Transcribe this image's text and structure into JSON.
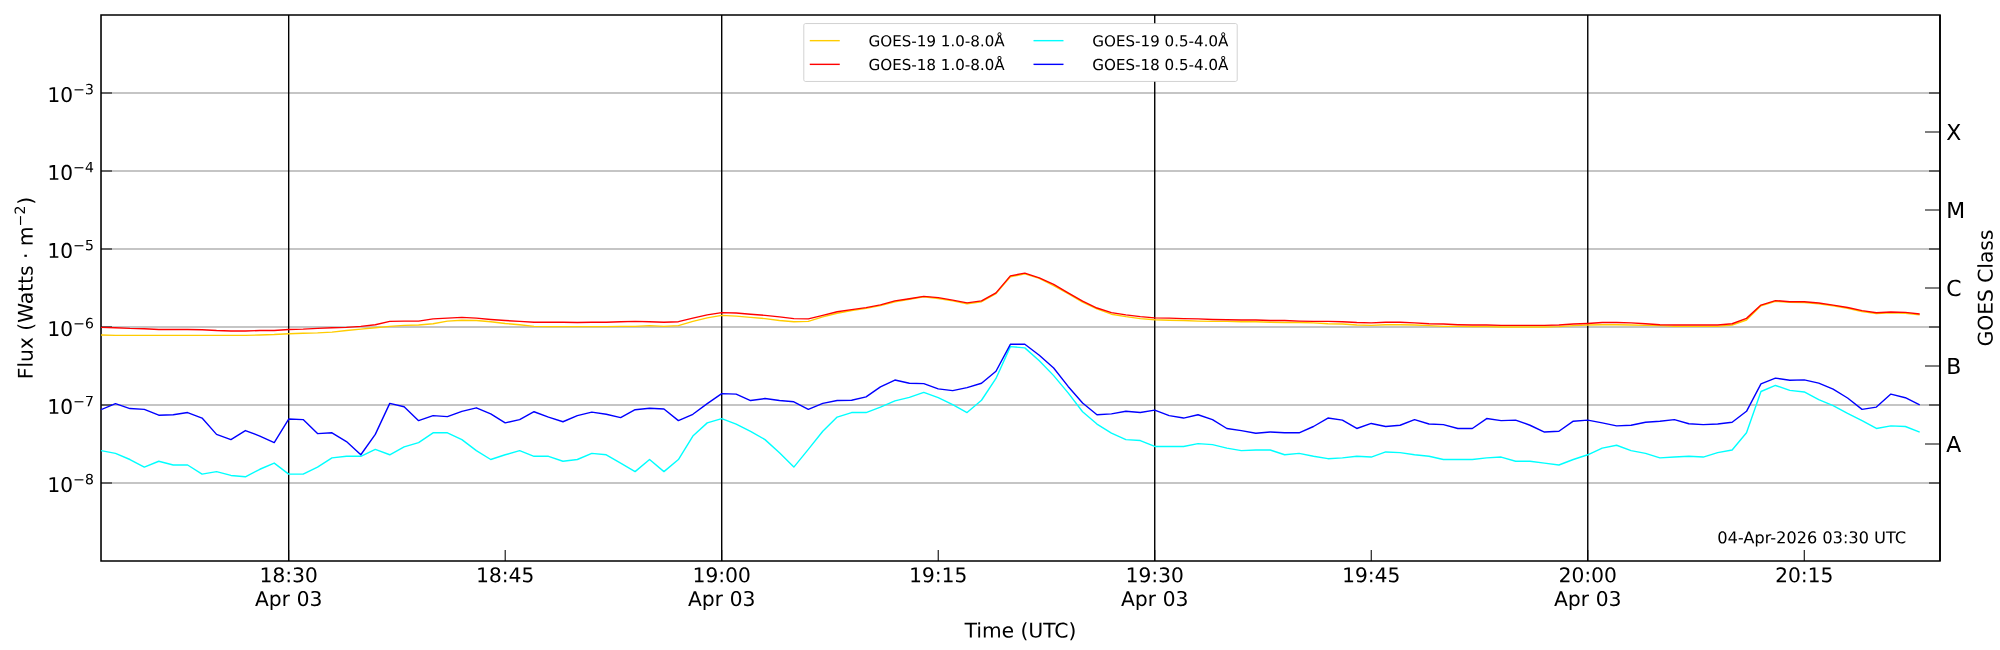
{
  "chart_data": {
    "type": "line",
    "xlabel": "Time (UTC)",
    "ylabel": "Flux (Watts · m$^{−2}$)",
    "y2label": "GOES Class",
    "annotations": [
      "04-Apr-2026 03:30 UTC"
    ],
    "log": "y",
    "grid": "y",
    "legend": "top",
    "xlim": [
      18.2833,
      20.4067
    ],
    "ylim": [
      1e-09,
      0.01
    ],
    "y2_categories": [
      "X",
      "M",
      "C",
      "B",
      "A"
    ],
    "xticks": [
      {
        "value": 18.5,
        "label": "18:30 Apr 03"
      },
      {
        "value": 18.75,
        "label": "18:45"
      },
      {
        "value": 19,
        "label": "19:00 Apr 03"
      },
      {
        "value": 19.25,
        "label": "19:15"
      },
      {
        "value": 19.5,
        "label": "19:30 Apr 03"
      },
      {
        "value": 19.75,
        "label": "19:45"
      },
      {
        "value": 20,
        "label": "20:00 Apr 03"
      },
      {
        "value": 20.25,
        "label": "20:15"
      }
    ],
    "yticks": [
      {
        "value": 1e-08,
        "label": "10$^{−8}$"
      },
      {
        "value": 1e-07,
        "label": "10$^{−7}$"
      },
      {
        "value": 1e-06,
        "label": "10$^{−6}$"
      },
      {
        "value": 1e-05,
        "label": "10$^{−5}$"
      },
      {
        "value": 0.0001,
        "label": "10$^{−4}$"
      },
      {
        "value": 0.001,
        "label": "10$^{−3}$"
      }
    ],
    "ref_lines": [
      {
        "axis": "x",
        "value": 18.5,
        "color": "#000000"
      },
      {
        "axis": "x",
        "value": 19,
        "color": "#000000"
      },
      {
        "axis": "x",
        "value": 19.5,
        "color": "#000000"
      },
      {
        "axis": "x",
        "value": 20,
        "color": "#000000"
      }
    ],
    "x": [
      18.2833,
      18.3,
      18.3167,
      18.3333,
      18.35,
      18.3667,
      18.3833,
      18.4,
      18.4167,
      18.4333,
      18.45,
      18.4667,
      18.4833,
      18.5,
      18.5167,
      18.5333,
      18.55,
      18.5667,
      18.5833,
      18.6,
      18.6167,
      18.6333,
      18.65,
      18.6667,
      18.6833,
      18.7,
      18.7167,
      18.7333,
      18.75,
      18.7667,
      18.7833,
      18.8,
      18.8167,
      18.8333,
      18.85,
      18.8667,
      18.8833,
      18.9,
      18.9167,
      18.9333,
      18.95,
      18.9667,
      18.9833,
      19,
      19.0167,
      19.0333,
      19.05,
      19.0667,
      19.0833,
      19.1,
      19.1167,
      19.1333,
      19.15,
      19.1667,
      19.1833,
      19.2,
      19.2167,
      19.2333,
      19.25,
      19.2667,
      19.2833,
      19.3,
      19.3167,
      19.3333,
      19.35,
      19.3667,
      19.3833,
      19.4,
      19.4167,
      19.4333,
      19.45,
      19.4667,
      19.4833,
      19.5,
      19.5167,
      19.5333,
      19.55,
      19.5667,
      19.5833,
      19.6,
      19.6167,
      19.6333,
      19.65,
      19.6667,
      19.6833,
      19.7,
      19.7167,
      19.7333,
      19.75,
      19.7667,
      19.7833,
      19.8,
      19.8167,
      19.8333,
      19.85,
      19.8667,
      19.8833,
      19.9,
      19.9167,
      19.9333,
      19.95,
      19.9667,
      19.9833,
      20,
      20.0167,
      20.0333,
      20.05,
      20.0667,
      20.0833,
      20.1,
      20.1167,
      20.1333,
      20.15,
      20.1667,
      20.1833,
      20.2,
      20.2167,
      20.2333,
      20.25,
      20.2667,
      20.2833,
      20.3,
      20.3167,
      20.3333,
      20.35,
      20.3667,
      20.3833
    ],
    "series": [
      {
        "name": "GOES-19 1.0-8.0Å",
        "color": "#ffcc00",
        "values": [
          7.9e-07,
          7.8e-07,
          7.8e-07,
          7.8e-07,
          7.8e-07,
          7.8e-07,
          7.8e-07,
          7.8e-07,
          7.8e-07,
          7.8e-07,
          7.8e-07,
          7.9e-07,
          8e-07,
          8.2e-07,
          8.3e-07,
          8.4e-07,
          8.6e-07,
          9e-07,
          9.4e-07,
          9.8e-07,
          1.02e-06,
          1.05e-06,
          1.06e-06,
          1.1e-06,
          1.19e-06,
          1.22e-06,
          1.21e-06,
          1.17e-06,
          1.11e-06,
          1.07e-06,
          1.02e-06,
          1.01e-06,
          1.01e-06,
          1.01e-06,
          1.01e-06,
          1.01e-06,
          1.02e-06,
          1.02e-06,
          1.04e-06,
          1.02e-06,
          1.04e-06,
          1.18e-06,
          1.31e-06,
          1.41e-06,
          1.38e-06,
          1.33e-06,
          1.28e-06,
          1.21e-06,
          1.17e-06,
          1.18e-06,
          1.35e-06,
          1.5e-06,
          1.63e-06,
          1.73e-06,
          1.88e-06,
          2.11e-06,
          2.27e-06,
          2.44e-06,
          2.32e-06,
          2.16e-06,
          1.99e-06,
          2.11e-06,
          2.68e-06,
          4.4e-06,
          4.8e-06,
          4.2e-06,
          3.4e-06,
          2.68e-06,
          2.09e-06,
          1.71e-06,
          1.46e-06,
          1.36e-06,
          1.28e-06,
          1.24e-06,
          1.22e-06,
          1.21e-06,
          1.19e-06,
          1.18e-06,
          1.18e-06,
          1.17e-06,
          1.17e-06,
          1.15e-06,
          1.14e-06,
          1.14e-06,
          1.13e-06,
          1.1e-06,
          1.09e-06,
          1.06e-06,
          1.05e-06,
          1.07e-06,
          1.07e-06,
          1.06e-06,
          1.04e-06,
          1.02e-06,
          1.02e-06,
          1.01e-06,
          1.01e-06,
          1e-06,
          1e-06,
          1e-06,
          1e-06,
          1.01e-06,
          1.04e-06,
          1.06e-06,
          1.07e-06,
          1.07e-06,
          1.06e-06,
          1.05e-06,
          1.04e-06,
          1.02e-06,
          1.02e-06,
          1.02e-06,
          1.02e-06,
          1.06e-06,
          1.23e-06,
          1.87e-06,
          2.13e-06,
          2.08e-06,
          2.06e-06,
          1.98e-06,
          1.87e-06,
          1.74e-06,
          1.58e-06,
          1.49e-06,
          1.52e-06,
          1.5e-06,
          1.43e-06
        ]
      },
      {
        "name": "GOES-19 0.5-4.0Å",
        "color": "#00ffff",
        "values": [
          2.6e-08,
          2.4e-08,
          2e-08,
          1.6e-08,
          1.9e-08,
          1.7e-08,
          1.7e-08,
          1.3e-08,
          1.4e-08,
          1.25e-08,
          1.2e-08,
          1.5e-08,
          1.8e-08,
          1.3e-08,
          1.3e-08,
          1.6e-08,
          2.1e-08,
          2.2e-08,
          2.2e-08,
          2.7e-08,
          2.3e-08,
          2.9e-08,
          3.3e-08,
          4.4e-08,
          4.4e-08,
          3.6e-08,
          2.6e-08,
          2e-08,
          2.3e-08,
          2.6e-08,
          2.2e-08,
          2.2e-08,
          1.9e-08,
          2e-08,
          2.4e-08,
          2.3e-08,
          1.8e-08,
          1.4e-08,
          2e-08,
          1.4e-08,
          2e-08,
          4e-08,
          5.9e-08,
          6.7e-08,
          5.7e-08,
          4.6e-08,
          3.6e-08,
          2.44e-08,
          1.6e-08,
          2.7e-08,
          4.6e-08,
          7e-08,
          8e-08,
          8e-08,
          9.4e-08,
          1.13e-07,
          1.25e-07,
          1.45e-07,
          1.24e-07,
          1.01e-07,
          8e-08,
          1.15e-07,
          2.19e-07,
          5.6e-07,
          5.4e-07,
          3.7e-07,
          2.38e-07,
          1.43e-07,
          8.2e-08,
          5.7e-08,
          4.35e-08,
          3.6e-08,
          3.5e-08,
          2.94e-08,
          2.94e-08,
          2.94e-08,
          3.2e-08,
          3.1e-08,
          2.8e-08,
          2.6e-08,
          2.65e-08,
          2.65e-08,
          2.3e-08,
          2.4e-08,
          2.2e-08,
          2.05e-08,
          2.1e-08,
          2.2e-08,
          2.15e-08,
          2.5e-08,
          2.45e-08,
          2.3e-08,
          2.2e-08,
          2e-08,
          2e-08,
          2e-08,
          2.1e-08,
          2.15e-08,
          1.9e-08,
          1.9e-08,
          1.8e-08,
          1.7e-08,
          2e-08,
          2.3e-08,
          2.8e-08,
          3.05e-08,
          2.6e-08,
          2.4e-08,
          2.1e-08,
          2.15e-08,
          2.2e-08,
          2.15e-08,
          2.45e-08,
          2.65e-08,
          4.4e-08,
          1.49e-07,
          1.78e-07,
          1.54e-07,
          1.47e-07,
          1.17e-07,
          9.8e-08,
          7.8e-08,
          6.3e-08,
          5e-08,
          5.4e-08,
          5.3e-08,
          4.5e-08
        ]
      },
      {
        "name": "GOES-18 1.0-8.0Å",
        "color": "#ff0000",
        "values": [
          9.9e-07,
          9.8e-07,
          9.6e-07,
          9.5e-07,
          9.3e-07,
          9.3e-07,
          9.3e-07,
          9.2e-07,
          9e-07,
          8.9e-07,
          8.9e-07,
          9e-07,
          9e-07,
          9.3e-07,
          9.4e-07,
          9.6e-07,
          9.8e-07,
          9.9e-07,
          1.02e-06,
          1.07e-06,
          1.18e-06,
          1.19e-06,
          1.19e-06,
          1.27e-06,
          1.3e-06,
          1.33e-06,
          1.3e-06,
          1.25e-06,
          1.21e-06,
          1.18e-06,
          1.15e-06,
          1.15e-06,
          1.15e-06,
          1.14e-06,
          1.15e-06,
          1.15e-06,
          1.17e-06,
          1.18e-06,
          1.17e-06,
          1.15e-06,
          1.17e-06,
          1.3e-06,
          1.43e-06,
          1.53e-06,
          1.51e-06,
          1.46e-06,
          1.41e-06,
          1.35e-06,
          1.28e-06,
          1.27e-06,
          1.41e-06,
          1.57e-06,
          1.67e-06,
          1.77e-06,
          1.92e-06,
          2.16e-06,
          2.3e-06,
          2.47e-06,
          2.38e-06,
          2.21e-06,
          2.04e-06,
          2.16e-06,
          2.74e-06,
          4.52e-06,
          4.91e-06,
          4.26e-06,
          3.52e-06,
          2.74e-06,
          2.14e-06,
          1.75e-06,
          1.53e-06,
          1.43e-06,
          1.36e-06,
          1.31e-06,
          1.3e-06,
          1.28e-06,
          1.27e-06,
          1.25e-06,
          1.24e-06,
          1.23e-06,
          1.23e-06,
          1.21e-06,
          1.21e-06,
          1.19e-06,
          1.18e-06,
          1.18e-06,
          1.17e-06,
          1.14e-06,
          1.13e-06,
          1.15e-06,
          1.15e-06,
          1.13e-06,
          1.1e-06,
          1.09e-06,
          1.07e-06,
          1.06e-06,
          1.06e-06,
          1.05e-06,
          1.05e-06,
          1.05e-06,
          1.05e-06,
          1.06e-06,
          1.09e-06,
          1.11e-06,
          1.14e-06,
          1.14e-06,
          1.13e-06,
          1.1e-06,
          1.07e-06,
          1.06e-06,
          1.06e-06,
          1.06e-06,
          1.06e-06,
          1.1e-06,
          1.29e-06,
          1.91e-06,
          2.18e-06,
          2.11e-06,
          2.11e-06,
          2.03e-06,
          1.91e-06,
          1.78e-06,
          1.62e-06,
          1.52e-06,
          1.56e-06,
          1.54e-06,
          1.47e-06
        ]
      },
      {
        "name": "GOES-18 0.5-4.0Å",
        "color": "#0000ff",
        "values": [
          8.7e-08,
          1.04e-07,
          9e-08,
          8.8e-08,
          7.4e-08,
          7.5e-08,
          8e-08,
          6.8e-08,
          4.2e-08,
          3.6e-08,
          4.7e-08,
          4e-08,
          3.3e-08,
          6.6e-08,
          6.5e-08,
          4.3e-08,
          4.4e-08,
          3.4e-08,
          2.3e-08,
          4.2e-08,
          1.05e-07,
          9.5e-08,
          6.3e-08,
          7.3e-08,
          7.1e-08,
          8.3e-08,
          9.2e-08,
          7.7e-08,
          5.9e-08,
          6.5e-08,
          8.2e-08,
          7e-08,
          6.1e-08,
          7.3e-08,
          8.1e-08,
          7.6e-08,
          6.9e-08,
          8.7e-08,
          9.1e-08,
          8.9e-08,
          6.3e-08,
          7.6e-08,
          1.04e-07,
          1.4e-07,
          1.38e-07,
          1.14e-07,
          1.21e-07,
          1.14e-07,
          1.1e-07,
          8.8e-08,
          1.05e-07,
          1.14e-07,
          1.15e-07,
          1.27e-07,
          1.71e-07,
          2.09e-07,
          1.9e-07,
          1.88e-07,
          1.61e-07,
          1.53e-07,
          1.67e-07,
          1.9e-07,
          2.71e-07,
          6e-07,
          6e-07,
          4.35e-07,
          2.98e-07,
          1.73e-07,
          1.06e-07,
          7.5e-08,
          7.7e-08,
          8.3e-08,
          8e-08,
          8.6e-08,
          7.3e-08,
          6.8e-08,
          7.5e-08,
          6.5e-08,
          5e-08,
          4.7e-08,
          4.35e-08,
          4.5e-08,
          4.4e-08,
          4.4e-08,
          5.3e-08,
          6.8e-08,
          6.4e-08,
          5e-08,
          5.8e-08,
          5.3e-08,
          5.5e-08,
          6.5e-08,
          5.7e-08,
          5.6e-08,
          5e-08,
          5e-08,
          6.7e-08,
          6.3e-08,
          6.4e-08,
          5.5e-08,
          4.5e-08,
          4.6e-08,
          6.2e-08,
          6.4e-08,
          5.9e-08,
          5.4e-08,
          5.5e-08,
          6e-08,
          6.2e-08,
          6.5e-08,
          5.75e-08,
          5.6e-08,
          5.7e-08,
          6e-08,
          8.3e-08,
          1.87e-07,
          2.21e-07,
          2.08e-07,
          2.1e-07,
          1.91e-07,
          1.6e-07,
          1.23e-07,
          8.8e-08,
          9.4e-08,
          1.38e-07,
          1.24e-07,
          1e-07
        ]
      }
    ]
  }
}
